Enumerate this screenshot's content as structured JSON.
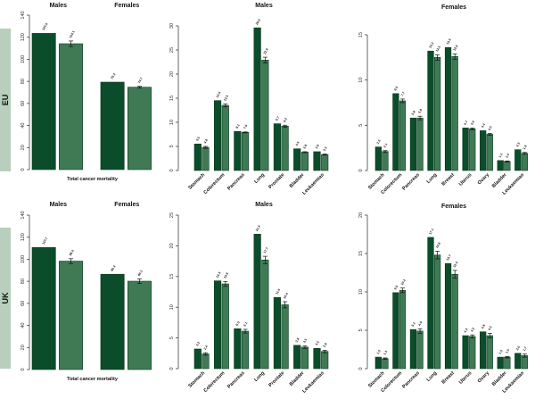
{
  "colors": {
    "dark": "#0b4d2a",
    "light": "#3f7a55",
    "band": "#b7cfbc",
    "axis": "#444444"
  },
  "chart_data": [
    {
      "id": "eu-total",
      "row_label": "EU",
      "type": "bar",
      "group_titles": [
        "Males",
        "Females"
      ],
      "categories": [
        "Males",
        "Females"
      ],
      "xlabel": "Total cancer mortality",
      "ylim": [
        0,
        140
      ],
      "ystep": 20,
      "series": [
        {
          "name": "bar1",
          "values": [
            123.5,
            79.3
          ]
        },
        {
          "name": "bar2",
          "values": [
            114.1,
            74.7
          ],
          "error": [
            2.5,
            0.8
          ]
        }
      ]
    },
    {
      "id": "eu-males",
      "type": "bar",
      "title": "Males",
      "categories": [
        "Stomach",
        "Colorectum",
        "Pancreas",
        "Lung",
        "Prostate",
        "Bladder",
        "Leukaemias"
      ],
      "ylim": [
        0,
        30
      ],
      "ystep": 5,
      "series": [
        {
          "name": "bar1",
          "values": [
            5.5,
            14.5,
            8.1,
            29.6,
            9.7,
            4.5,
            3.9
          ]
        },
        {
          "name": "bar2",
          "values": [
            4.8,
            13.5,
            7.9,
            22.9,
            9.2,
            3.8,
            3.3
          ],
          "error": [
            0.2,
            0.3,
            0.1,
            0.6,
            0.2,
            0.1,
            0.1
          ]
        }
      ]
    },
    {
      "id": "eu-females",
      "type": "bar",
      "title": "Females",
      "categories": [
        "Stomach",
        "Colorectum",
        "Pancreas",
        "Lung",
        "Breast",
        "Uterus",
        "Ovary",
        "Bladder",
        "Leukaemias"
      ],
      "ylim": [
        0,
        15
      ],
      "ystep": 5,
      "series": [
        {
          "name": "bar1",
          "values": [
            2.6,
            8.5,
            5.8,
            13.2,
            13.6,
            4.7,
            4.4,
            1.1,
            2.3
          ]
        },
        {
          "name": "bar2",
          "values": [
            2.1,
            7.7,
            5.8,
            12.5,
            12.6,
            4.6,
            4.0,
            1.0,
            1.9
          ],
          "error": [
            0.1,
            0.2,
            0.2,
            0.3,
            0.3,
            0.1,
            0.1,
            0.05,
            0.1
          ]
        }
      ]
    },
    {
      "id": "uk-total",
      "row_label": "UK",
      "type": "bar",
      "group_titles": [
        "Males",
        "Females"
      ],
      "categories": [
        "Males",
        "Females"
      ],
      "xlabel": "Total cancer mortality",
      "ylim": [
        0,
        140
      ],
      "ystep": 20,
      "series": [
        {
          "name": "bar1",
          "values": [
            110.7,
            86.4
          ]
        },
        {
          "name": "bar2",
          "values": [
            98.3,
            80.1
          ],
          "error": [
            2.2,
            2.0
          ]
        }
      ]
    },
    {
      "id": "uk-males",
      "type": "bar",
      "title": "Males",
      "categories": [
        "Stomach",
        "Colorectum",
        "Pancreas",
        "Lung",
        "Prostate",
        "Bladder",
        "Leukaemias"
      ],
      "ylim": [
        0,
        25
      ],
      "ystep": 5,
      "series": [
        {
          "name": "bar1",
          "values": [
            3.2,
            14.3,
            6.5,
            21.9,
            11.6,
            3.8,
            3.3
          ]
        },
        {
          "name": "bar2",
          "values": [
            2.4,
            13.8,
            6.1,
            17.7,
            10.4,
            3.5,
            2.8
          ],
          "error": [
            0.2,
            0.4,
            0.3,
            0.6,
            0.5,
            0.2,
            0.2
          ]
        }
      ]
    },
    {
      "id": "uk-females",
      "type": "bar",
      "title": "Females",
      "categories": [
        "Stomach",
        "Colorectum",
        "Pancreas",
        "Lung",
        "Breast",
        "Uterus",
        "Ovary",
        "Bladder",
        "Leukaemias"
      ],
      "ylim": [
        0,
        20
      ],
      "ystep": 5,
      "series": [
        {
          "name": "bar1",
          "values": [
            1.5,
            9.9,
            5.1,
            17.1,
            13.7,
            4.3,
            4.8,
            1.5,
            2.0
          ]
        },
        {
          "name": "bar2",
          "values": [
            1.3,
            10.2,
            4.9,
            14.8,
            12.3,
            4.2,
            4.3,
            1.5,
            1.7
          ],
          "error": [
            0.1,
            0.3,
            0.3,
            0.5,
            0.5,
            0.2,
            0.3,
            0.1,
            0.2
          ]
        }
      ]
    }
  ]
}
